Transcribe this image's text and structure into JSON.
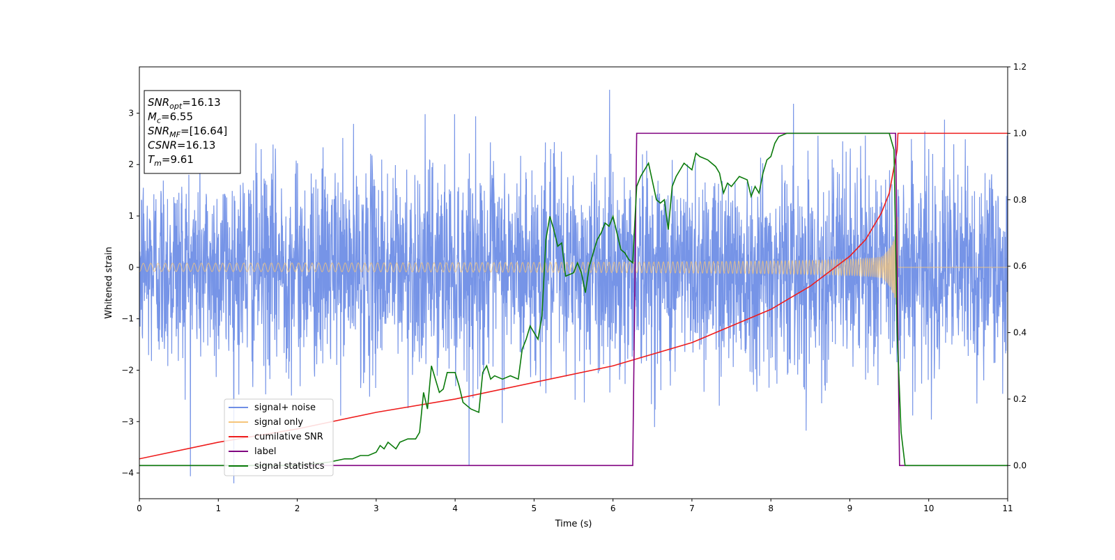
{
  "chart_data": {
    "type": "line",
    "xlabel": "Time (s)",
    "ylabel": "Whitened strain",
    "xlim": [
      0,
      11
    ],
    "ylim_left": [
      -4.5,
      3.9
    ],
    "ylim_right": [
      -0.1,
      1.2
    ],
    "x_ticks": [
      0,
      1,
      2,
      3,
      4,
      5,
      6,
      7,
      8,
      9,
      10,
      11
    ],
    "y_left_ticks": [
      -4,
      -3,
      -2,
      -1,
      0,
      1,
      2,
      3
    ],
    "y_right_ticks": [
      0.0,
      0.2,
      0.4,
      0.6,
      0.8,
      1.0,
      1.2
    ],
    "info_box": [
      {
        "name": "SNR",
        "sub": "opt",
        "value": "=16.13"
      },
      {
        "name": "M",
        "sub": "c",
        "value": "=6.55"
      },
      {
        "name": "SNR",
        "sub": "MF",
        "value": "=[16.64]"
      },
      {
        "name": "CSNR",
        "sub": "",
        "value": "=16.13"
      },
      {
        "name": "T",
        "sub": "m",
        "value": "=9.61"
      }
    ],
    "legend_position": "lower left",
    "series": [
      {
        "name": "signal+ noise",
        "axis": "left",
        "color": "#6f8ee6",
        "kind": "noise",
        "noise_std": 1.0,
        "merger_time": 9.61
      },
      {
        "name": "signal only",
        "axis": "left",
        "color": "#f5c57a",
        "kind": "chirp",
        "amp_start": 0.08,
        "amp_peak": 1.0,
        "merger_time": 9.61
      },
      {
        "name": "cumilative SNR",
        "axis": "right",
        "color": "#ee1c1c",
        "points": [
          [
            0.0,
            0.02
          ],
          [
            1.0,
            0.07
          ],
          [
            2.0,
            0.11
          ],
          [
            3.0,
            0.16
          ],
          [
            4.0,
            0.2
          ],
          [
            5.0,
            0.25
          ],
          [
            6.0,
            0.3
          ],
          [
            7.0,
            0.37
          ],
          [
            7.5,
            0.42
          ],
          [
            8.0,
            0.47
          ],
          [
            8.5,
            0.54
          ],
          [
            9.0,
            0.63
          ],
          [
            9.2,
            0.68
          ],
          [
            9.4,
            0.76
          ],
          [
            9.5,
            0.82
          ],
          [
            9.6,
            0.95
          ],
          [
            9.61,
            1.0
          ],
          [
            11.0,
            1.0
          ]
        ]
      },
      {
        "name": "label",
        "axis": "right",
        "color": "#800080",
        "points": [
          [
            0.0,
            0.0
          ],
          [
            6.25,
            0.0
          ],
          [
            6.3,
            1.0
          ],
          [
            9.58,
            1.0
          ],
          [
            9.63,
            0.0
          ],
          [
            11.0,
            0.0
          ]
        ]
      },
      {
        "name": "signal statistics",
        "axis": "right",
        "color": "#0a7a0a",
        "points": [
          [
            0.0,
            0.0
          ],
          [
            0.5,
            0.0
          ],
          [
            1.0,
            0.0
          ],
          [
            2.0,
            0.0
          ],
          [
            2.4,
            0.01
          ],
          [
            2.6,
            0.02
          ],
          [
            2.7,
            0.02
          ],
          [
            2.8,
            0.03
          ],
          [
            2.9,
            0.03
          ],
          [
            3.0,
            0.04
          ],
          [
            3.05,
            0.06
          ],
          [
            3.1,
            0.05
          ],
          [
            3.15,
            0.07
          ],
          [
            3.25,
            0.05
          ],
          [
            3.3,
            0.07
          ],
          [
            3.4,
            0.08
          ],
          [
            3.5,
            0.08
          ],
          [
            3.55,
            0.1
          ],
          [
            3.6,
            0.22
          ],
          [
            3.65,
            0.17
          ],
          [
            3.7,
            0.3
          ],
          [
            3.8,
            0.22
          ],
          [
            3.85,
            0.23
          ],
          [
            3.9,
            0.28
          ],
          [
            4.0,
            0.28
          ],
          [
            4.05,
            0.24
          ],
          [
            4.1,
            0.19
          ],
          [
            4.2,
            0.17
          ],
          [
            4.3,
            0.16
          ],
          [
            4.35,
            0.28
          ],
          [
            4.4,
            0.3
          ],
          [
            4.45,
            0.26
          ],
          [
            4.5,
            0.27
          ],
          [
            4.6,
            0.26
          ],
          [
            4.7,
            0.27
          ],
          [
            4.8,
            0.26
          ],
          [
            4.85,
            0.35
          ],
          [
            4.9,
            0.38
          ],
          [
            4.95,
            0.42
          ],
          [
            5.0,
            0.4
          ],
          [
            5.05,
            0.38
          ],
          [
            5.1,
            0.45
          ],
          [
            5.15,
            0.68
          ],
          [
            5.2,
            0.75
          ],
          [
            5.25,
            0.71
          ],
          [
            5.3,
            0.66
          ],
          [
            5.35,
            0.67
          ],
          [
            5.4,
            0.57
          ],
          [
            5.5,
            0.58
          ],
          [
            5.55,
            0.61
          ],
          [
            5.6,
            0.58
          ],
          [
            5.65,
            0.52
          ],
          [
            5.7,
            0.6
          ],
          [
            5.75,
            0.64
          ],
          [
            5.8,
            0.68
          ],
          [
            5.85,
            0.7
          ],
          [
            5.9,
            0.73
          ],
          [
            5.95,
            0.72
          ],
          [
            6.0,
            0.75
          ],
          [
            6.05,
            0.7
          ],
          [
            6.1,
            0.65
          ],
          [
            6.15,
            0.64
          ],
          [
            6.2,
            0.62
          ],
          [
            6.25,
            0.61
          ],
          [
            6.3,
            0.84
          ],
          [
            6.35,
            0.87
          ],
          [
            6.45,
            0.91
          ],
          [
            6.55,
            0.8
          ],
          [
            6.6,
            0.79
          ],
          [
            6.65,
            0.8
          ],
          [
            6.7,
            0.71
          ],
          [
            6.75,
            0.84
          ],
          [
            6.8,
            0.87
          ],
          [
            6.9,
            0.91
          ],
          [
            7.0,
            0.89
          ],
          [
            7.05,
            0.94
          ],
          [
            7.1,
            0.93
          ],
          [
            7.2,
            0.92
          ],
          [
            7.3,
            0.9
          ],
          [
            7.35,
            0.88
          ],
          [
            7.4,
            0.82
          ],
          [
            7.45,
            0.85
          ],
          [
            7.5,
            0.84
          ],
          [
            7.6,
            0.87
          ],
          [
            7.7,
            0.86
          ],
          [
            7.75,
            0.81
          ],
          [
            7.8,
            0.84
          ],
          [
            7.85,
            0.82
          ],
          [
            7.9,
            0.88
          ],
          [
            7.95,
            0.92
          ],
          [
            8.0,
            0.93
          ],
          [
            8.05,
            0.97
          ],
          [
            8.1,
            0.99
          ],
          [
            8.2,
            1.0
          ],
          [
            9.0,
            1.0
          ],
          [
            9.4,
            1.0
          ],
          [
            9.5,
            1.0
          ],
          [
            9.56,
            0.95
          ],
          [
            9.6,
            0.4
          ],
          [
            9.65,
            0.1
          ],
          [
            9.7,
            0.0
          ],
          [
            11.0,
            0.0
          ]
        ]
      }
    ]
  }
}
